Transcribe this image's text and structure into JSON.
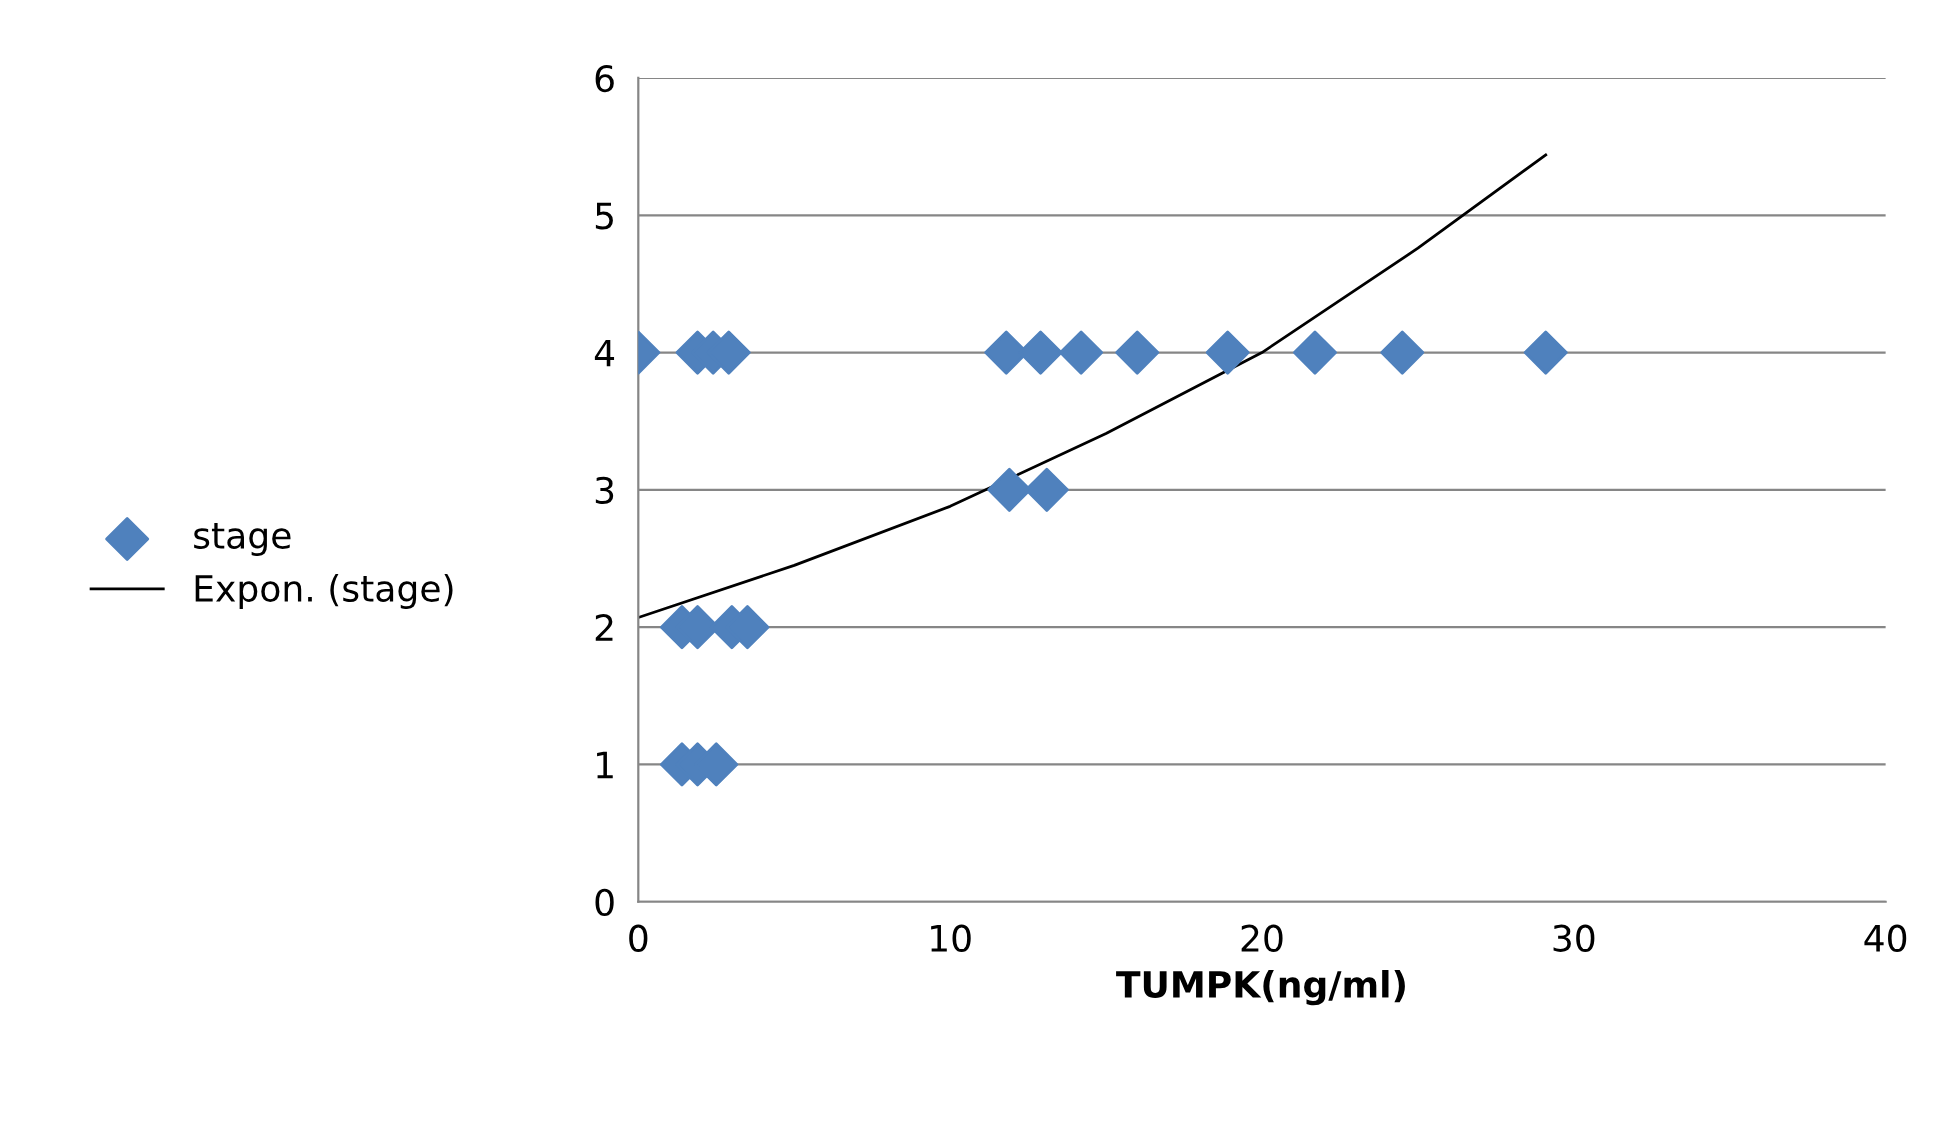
{
  "chart_data": {
    "type": "scatter",
    "xlabel": "TUMPK(ng/ml)",
    "xlim": [
      0,
      40
    ],
    "xticks": [
      0,
      10,
      20,
      30,
      40
    ],
    "ylim": [
      0,
      6
    ],
    "yticks": [
      0,
      1,
      2,
      3,
      4,
      5,
      6
    ],
    "grid": "y",
    "legend": "left",
    "series": [
      {
        "name": "stage",
        "marker": "diamond",
        "color": "#4f81bd",
        "x": [
          0,
          1.9,
          2.4,
          2.9,
          11.8,
          12.9,
          14.2,
          16.0,
          18.9,
          21.7,
          24.5,
          29.1,
          11.9,
          13.1,
          1.4,
          1.9,
          3.0,
          3.5,
          1.4,
          1.9,
          2.5
        ],
        "values": [
          4,
          4,
          4,
          4,
          4,
          4,
          4,
          4,
          4,
          4,
          4,
          4,
          3,
          3,
          2,
          2,
          2,
          2,
          1,
          1,
          1
        ]
      },
      {
        "name": "Expon. (stage)",
        "type": "line",
        "marker": "none",
        "line_style": "solid",
        "color": "#000000",
        "x": [
          0,
          5,
          10,
          15,
          20,
          25,
          29.1
        ],
        "values": [
          2.07,
          2.45,
          2.88,
          3.41,
          4.0,
          4.76,
          5.44
        ]
      }
    ]
  }
}
